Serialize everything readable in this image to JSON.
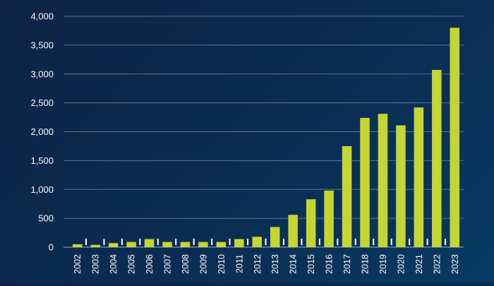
{
  "colors": {
    "background": "#0b2c52",
    "bar": "#c5d632",
    "grid": "#5d7596",
    "text": "#ffffff",
    "tick": "#ffffff"
  },
  "chart_data": {
    "type": "bar",
    "categories": [
      "2002",
      "2003",
      "2004",
      "2005",
      "2006",
      "2007",
      "2008",
      "2009",
      "2010",
      "2011",
      "2012",
      "2013",
      "2014",
      "2015",
      "2016",
      "2017",
      "2018",
      "2019",
      "2020",
      "2021",
      "2022",
      "2023"
    ],
    "series": [
      {
        "values": [
          50,
          40,
          70,
          90,
          140,
          90,
          90,
          90,
          90,
          140,
          180,
          350,
          560,
          830,
          980,
          1750,
          2240,
          2310,
          2110,
          2420,
          3070,
          3800
        ]
      }
    ],
    "y_tick_labels": [
      "0",
      "500",
      "1,000",
      "1,500",
      "2,000",
      "2,500",
      "3,000",
      "3,500",
      "4,000"
    ],
    "y_ticks": [
      0,
      500,
      1000,
      1500,
      2000,
      2500,
      3000,
      3500,
      4000
    ],
    "ylim": [
      0,
      4000
    ],
    "grid": true,
    "legend": "none",
    "x_label_orientation": "vertical"
  }
}
